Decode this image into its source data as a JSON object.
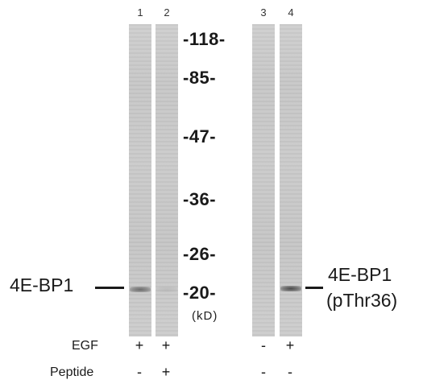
{
  "lanes": [
    {
      "number": "1",
      "band_intensity": 0.55
    },
    {
      "number": "2",
      "band_intensity": 0.08
    },
    {
      "number": "3",
      "band_intensity": 0.0
    },
    {
      "number": "4",
      "band_intensity": 0.75
    }
  ],
  "markers": [
    {
      "label": "-118-"
    },
    {
      "label": "-85-"
    },
    {
      "label": "-47-"
    },
    {
      "label": "-36-"
    },
    {
      "label": "-26-"
    },
    {
      "label": "-20-"
    }
  ],
  "unit": "(kD)",
  "left_protein": "4E-BP1",
  "right_protein": {
    "line1": "4E-BP1",
    "line2": "(pThr36)"
  },
  "conditions": [
    {
      "label": "EGF",
      "signs": [
        "+",
        "+",
        "-",
        "+"
      ]
    },
    {
      "label": "Peptide",
      "signs": [
        "-",
        "+",
        "-",
        "-"
      ]
    }
  ]
}
